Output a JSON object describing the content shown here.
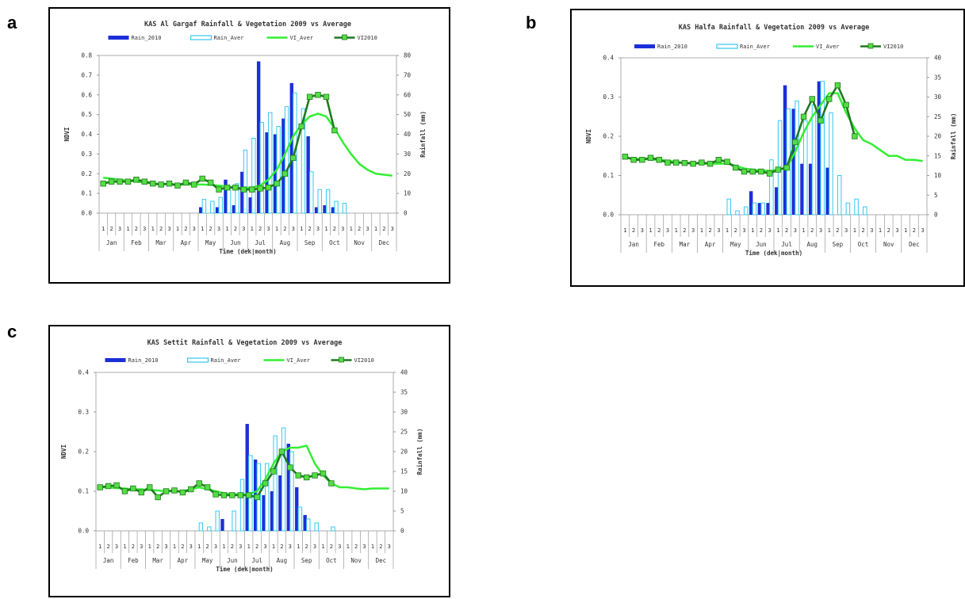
{
  "panels": [
    {
      "label": "a",
      "chart_data": {
        "type": "bar+line",
        "title": "KAS Al Gargaf Rainfall & Vegetation 2009 vs Average",
        "xlabel": "Time (dek|month)",
        "ylabel_left": "NDVI",
        "ylabel_right": "Rainfall (mm)",
        "ylim_left": [
          0,
          0.8
        ],
        "ylim_right": [
          0,
          80
        ],
        "yticks_left": [
          "0.0",
          "0.1",
          "0.2",
          "0.3",
          "0.4",
          "0.5",
          "0.6",
          "0.7",
          "0.8"
        ],
        "yticks_right": [
          "0",
          "10",
          "20",
          "30",
          "40",
          "50",
          "60",
          "70",
          "80"
        ],
        "months": [
          "Jan",
          "Feb",
          "Mar",
          "Apr",
          "May",
          "Jun",
          "Jul",
          "Aug",
          "Sep",
          "Oct",
          "Nov",
          "Dec"
        ],
        "dekads": [
          "1",
          "2",
          "3"
        ],
        "legend": [
          "Rain_2010",
          "Rain_Aver",
          "VI_Aver",
          "VI2010"
        ],
        "rain_2010": [
          0,
          0,
          0,
          0,
          0,
          0,
          0,
          0,
          0,
          0,
          0,
          0,
          3,
          0,
          3,
          17,
          4,
          21,
          8,
          77,
          41,
          40,
          48,
          66,
          0,
          39,
          3,
          4,
          3,
          0,
          0,
          0,
          0,
          0,
          0,
          0
        ],
        "rain_aver": [
          0,
          0,
          0,
          0,
          0,
          0,
          0,
          0,
          0,
          0,
          0,
          0,
          7,
          6,
          8,
          12,
          15,
          32,
          38,
          46,
          51,
          44,
          54,
          61,
          53,
          21,
          12,
          12,
          6,
          5,
          0,
          0,
          0,
          0,
          0,
          0
        ],
        "vi_aver": [
          0.18,
          0.175,
          0.17,
          0.165,
          0.16,
          0.155,
          0.15,
          0.148,
          0.147,
          0.145,
          0.145,
          0.145,
          0.145,
          0.143,
          0.14,
          0.135,
          0.13,
          0.128,
          0.13,
          0.14,
          0.17,
          0.22,
          0.3,
          0.39,
          0.45,
          0.49,
          0.505,
          0.49,
          0.43,
          0.36,
          0.3,
          0.25,
          0.22,
          0.2,
          0.195,
          0.19
        ],
        "vi2010": [
          0.15,
          0.16,
          0.16,
          0.16,
          0.17,
          0.16,
          0.15,
          0.145,
          0.15,
          0.14,
          0.155,
          0.145,
          0.175,
          0.155,
          0.12,
          0.13,
          0.13,
          0.12,
          0.12,
          0.125,
          0.13,
          0.15,
          0.2,
          0.28,
          0.44,
          0.59,
          0.6,
          0.59,
          0.42,
          null,
          null,
          null,
          null,
          null,
          null,
          null
        ]
      }
    },
    {
      "label": "b",
      "chart_data": {
        "type": "bar+line",
        "title": "KAS Halfa Rainfall & Vegetation 2009 vs Average",
        "xlabel": "Time (dek|month)",
        "ylabel_left": "NDVI",
        "ylabel_right": "Rainfall (mm)",
        "ylim_left": [
          0,
          0.4
        ],
        "ylim_right": [
          0,
          40
        ],
        "yticks_left": [
          "0.0",
          "0.1",
          "0.2",
          "0.3",
          "0.4"
        ],
        "yticks_right": [
          "0",
          "5",
          "10",
          "15",
          "20",
          "25",
          "30",
          "35",
          "40"
        ],
        "months": [
          "Jan",
          "Feb",
          "Mar",
          "Apr",
          "May",
          "Jun",
          "Jul",
          "Aug",
          "Sep",
          "Oct",
          "Nov",
          "Dec"
        ],
        "dekads": [
          "1",
          "2",
          "3"
        ],
        "legend": [
          "Rain_2010",
          "Rain_Aver",
          "VI_Aver",
          "VI2010"
        ],
        "rain_2010": [
          0,
          0,
          0,
          0,
          0,
          0,
          0,
          0,
          0,
          0,
          0,
          0,
          0,
          0,
          0,
          6,
          3,
          3,
          7,
          33,
          27,
          13,
          13,
          34,
          12,
          0,
          0,
          0,
          0,
          0,
          0,
          0,
          0,
          0,
          0,
          0
        ],
        "rain_aver": [
          0,
          0,
          0,
          0,
          0,
          0,
          0,
          0,
          0,
          0,
          0,
          0,
          4,
          1,
          2,
          3,
          3,
          14,
          24,
          27,
          29,
          24,
          28,
          34,
          26,
          10,
          3,
          4,
          2,
          0,
          0,
          0,
          0,
          0,
          0,
          0
        ],
        "vi_aver": [
          0.145,
          0.143,
          0.142,
          0.141,
          0.14,
          0.138,
          0.135,
          0.133,
          0.132,
          0.13,
          0.13,
          0.13,
          0.13,
          0.125,
          0.118,
          0.115,
          0.113,
          0.112,
          0.115,
          0.12,
          0.16,
          0.21,
          0.25,
          0.28,
          0.31,
          0.31,
          0.26,
          0.22,
          0.19,
          0.18,
          0.165,
          0.15,
          0.15,
          0.14,
          0.14,
          0.137
        ],
        "vi2010": [
          0.148,
          0.14,
          0.14,
          0.145,
          0.14,
          0.133,
          0.133,
          0.132,
          0.13,
          0.133,
          0.13,
          0.14,
          0.135,
          0.12,
          0.11,
          0.11,
          0.11,
          0.105,
          0.115,
          0.12,
          0.185,
          0.25,
          0.295,
          0.24,
          0.295,
          0.33,
          0.28,
          0.2,
          null,
          null,
          null,
          null,
          null,
          null,
          null,
          null
        ]
      }
    },
    {
      "label": "c",
      "chart_data": {
        "type": "bar+line",
        "title": "KAS Settit Rainfall & Vegetation 2009 vs Average",
        "xlabel": "Time (dek|month)",
        "ylabel_left": "NDVI",
        "ylabel_right": "Rainfall (mm)",
        "ylim_left": [
          0,
          0.4
        ],
        "ylim_right": [
          0,
          40
        ],
        "yticks_left": [
          "0.0",
          "0.1",
          "0.2",
          "0.3",
          "0.4"
        ],
        "yticks_right": [
          "0",
          "5",
          "10",
          "15",
          "20",
          "25",
          "30",
          "35",
          "40"
        ],
        "months": [
          "Jan",
          "Feb",
          "Mar",
          "Apr",
          "May",
          "Jun",
          "Jul",
          "Aug",
          "Sep",
          "Oct",
          "Nov",
          "Dec"
        ],
        "dekads": [
          "1",
          "2",
          "3"
        ],
        "legend": [
          "Rain_2010",
          "Rain_Aver",
          "VI_Aver",
          "VI2010"
        ],
        "rain_2010": [
          0,
          0,
          0,
          0,
          0,
          0,
          0,
          0,
          0,
          0,
          0,
          0,
          0,
          0,
          0,
          3,
          0,
          0,
          27,
          18,
          9,
          10,
          14,
          22,
          11,
          4,
          0,
          0,
          0,
          0,
          0,
          0,
          0,
          0,
          0,
          0
        ],
        "rain_aver": [
          0,
          0,
          0,
          0,
          0,
          0,
          0,
          0,
          0,
          0,
          0,
          0,
          2,
          1,
          5,
          0,
          5,
          13,
          19,
          17,
          17,
          24,
          26,
          20,
          6,
          3,
          2,
          0,
          1,
          0,
          0,
          0,
          0,
          0,
          0,
          0
        ],
        "vi_aver": [
          0.11,
          0.11,
          0.108,
          0.107,
          0.105,
          0.105,
          0.103,
          0.102,
          0.1,
          0.1,
          0.1,
          0.105,
          0.11,
          0.105,
          0.1,
          0.095,
          0.093,
          0.092,
          0.093,
          0.1,
          0.13,
          0.17,
          0.2,
          0.21,
          0.21,
          0.215,
          0.17,
          0.14,
          0.12,
          0.11,
          0.11,
          0.107,
          0.105,
          0.107,
          0.107,
          0.107
        ],
        "vi2010": [
          0.11,
          0.113,
          0.115,
          0.1,
          0.107,
          0.097,
          0.11,
          0.085,
          0.1,
          0.102,
          0.097,
          0.105,
          0.12,
          0.11,
          0.092,
          0.09,
          0.09,
          0.09,
          0.09,
          0.085,
          0.12,
          0.15,
          0.2,
          0.16,
          0.14,
          0.135,
          0.14,
          0.145,
          0.12,
          null,
          null,
          null,
          null,
          null,
          null,
          null
        ]
      }
    }
  ],
  "colors": {
    "rain_2010": "#1c2fd8",
    "rain_aver": "#36c8f0",
    "vi_aver": "#33ee33",
    "vi2010": "#1f7a1f",
    "vi2010_marker": "#55dd44",
    "axis": "#999999",
    "text": "#333333"
  }
}
